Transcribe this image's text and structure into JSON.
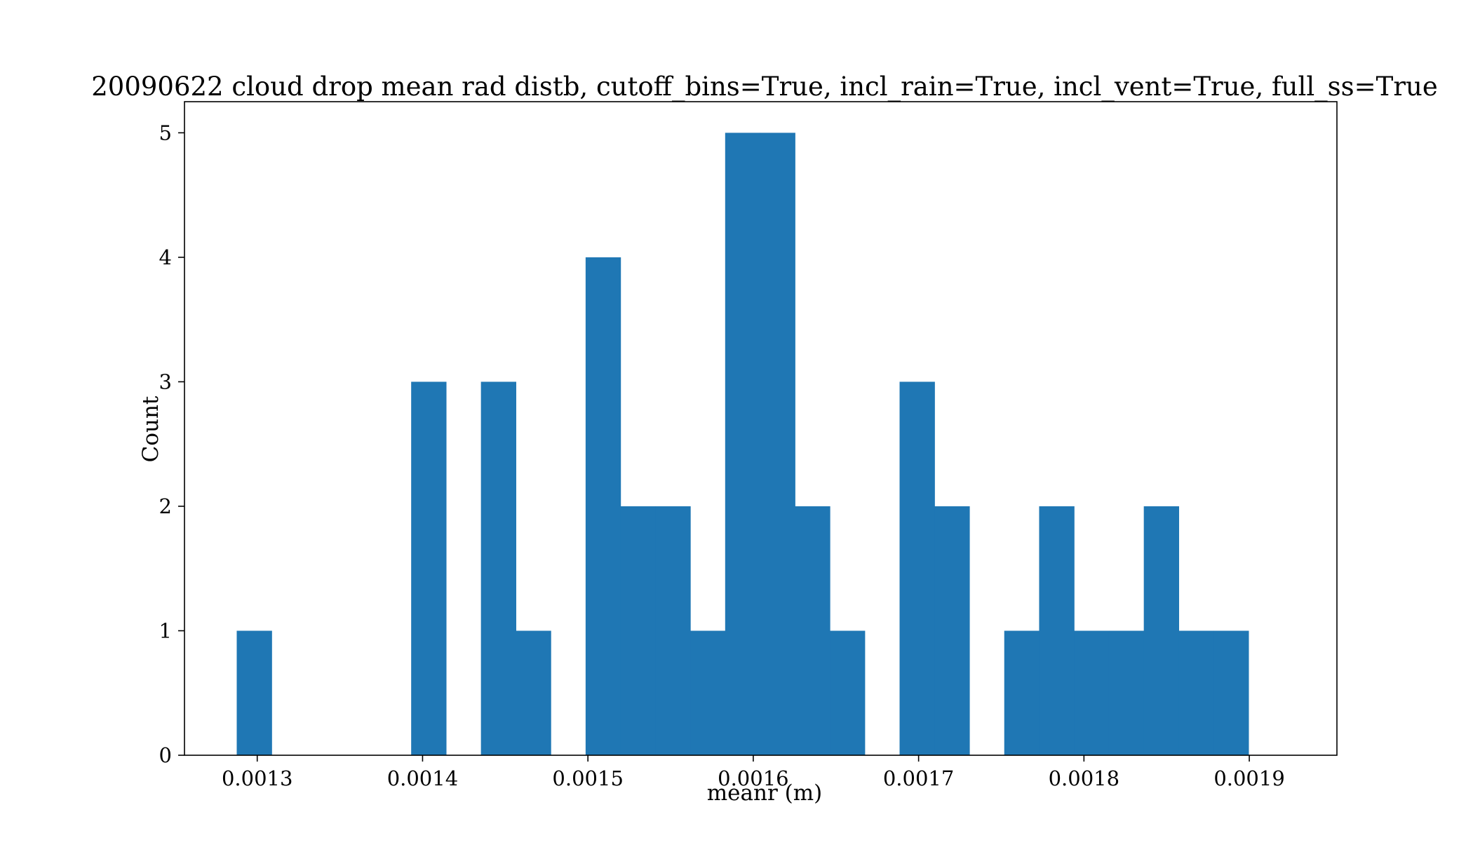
{
  "chart_data": {
    "type": "bar",
    "title": "20090622 cloud drop mean rad distb, cutoff_bins=True, incl_rain=True, incl_vent=True, full_ss=True",
    "xlabel": "meanr (m)",
    "ylabel": "Count",
    "xlim": [
      0.001256,
      0.001953
    ],
    "ylim": [
      0,
      5.25
    ],
    "x_ticks": [
      "0.0013",
      "0.0014",
      "0.0015",
      "0.0016",
      "0.0017",
      "0.0018",
      "0.0019"
    ],
    "x_tick_values": [
      0.0013,
      0.0014,
      0.0015,
      0.0016,
      0.0017,
      0.0018,
      0.0019
    ],
    "y_ticks": [
      "0",
      "1",
      "2",
      "3",
      "4",
      "5"
    ],
    "y_tick_values": [
      0,
      1,
      2,
      3,
      4,
      5
    ],
    "bin_start": 0.0012876,
    "bin_width": 2.11e-05,
    "counts": [
      1,
      0,
      0,
      0,
      0,
      3,
      0,
      3,
      1,
      0,
      4,
      2,
      2,
      1,
      5,
      5,
      2,
      1,
      0,
      3,
      2,
      0,
      1,
      2,
      1,
      1,
      2,
      1,
      1
    ],
    "grid": false,
    "legend": "none",
    "colors": {
      "bar": "#1f77b4",
      "axes": "#000000",
      "background": "#ffffff"
    }
  }
}
